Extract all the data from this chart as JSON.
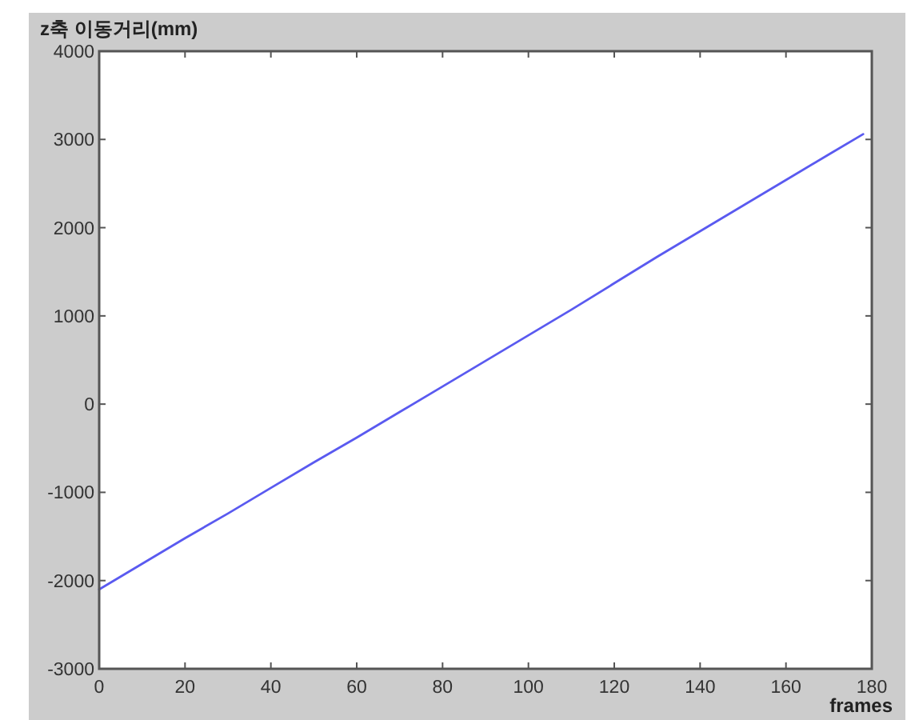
{
  "chart_data": {
    "type": "line",
    "ylabel": "z축 이동거리(mm)",
    "xlabel": "frames",
    "xlim": [
      0,
      180
    ],
    "ylim": [
      -3000,
      4000
    ],
    "xticks": [
      0,
      20,
      40,
      60,
      80,
      100,
      120,
      140,
      160,
      180
    ],
    "yticks": [
      -3000,
      -2000,
      -1000,
      0,
      1000,
      2000,
      3000,
      4000
    ],
    "series": [
      {
        "color": "#5a5af0",
        "x": [
          0,
          10,
          20,
          30,
          40,
          50,
          60,
          70,
          80,
          90,
          100,
          110,
          120,
          130,
          140,
          150,
          160,
          170,
          178
        ],
        "values": [
          -2100,
          -1810,
          -1520,
          -1240,
          -950,
          -660,
          -380,
          -90,
          200,
          490,
          780,
          1070,
          1370,
          1670,
          1960,
          2250,
          2540,
          2830,
          3060
        ]
      }
    ]
  }
}
